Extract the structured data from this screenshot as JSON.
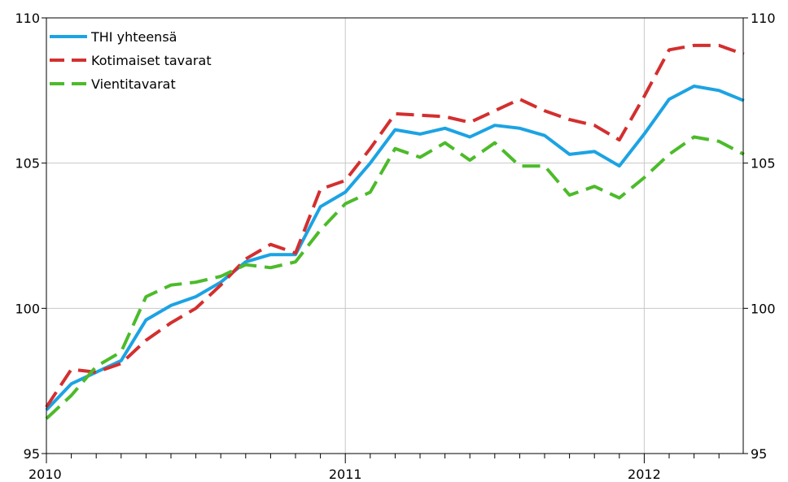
{
  "chart_data": {
    "type": "line",
    "title": "",
    "xlabel": "",
    "ylabel": "",
    "x_start": "2010-01",
    "x_tick_labels": [
      "2010",
      "2011",
      "2012"
    ],
    "x_ticks_months_per_label": 12,
    "ylim": [
      95,
      110
    ],
    "y_ticks": [
      95,
      100,
      105,
      110
    ],
    "y_tick_labels": [
      "95",
      "100",
      "105",
      "110"
    ],
    "grid": true,
    "right_axis_mirrors_left": true,
    "legend_position": "top-left",
    "series": [
      {
        "name": "THI yhteensä",
        "color": "#1ca3e3",
        "dash": "solid",
        "x": [
          "2010-01",
          "2010-02",
          "2010-03",
          "2010-04",
          "2010-05",
          "2010-06",
          "2010-07",
          "2010-08",
          "2010-09",
          "2010-10",
          "2010-11",
          "2010-12",
          "2011-01",
          "2011-02",
          "2011-03",
          "2011-04",
          "2011-05",
          "2011-06",
          "2011-07",
          "2011-08",
          "2011-09",
          "2011-10",
          "2011-11",
          "2011-12",
          "2012-01",
          "2012-02",
          "2012-03",
          "2012-04",
          "2012-05"
        ],
        "values": [
          96.5,
          97.4,
          97.8,
          98.2,
          99.6,
          100.1,
          100.4,
          100.9,
          101.6,
          101.85,
          101.85,
          103.5,
          104.0,
          105.0,
          106.15,
          106.0,
          106.2,
          105.9,
          106.3,
          106.2,
          105.95,
          105.3,
          105.4,
          104.9,
          106.0,
          107.2,
          107.65,
          107.5,
          107.15
        ]
      },
      {
        "name": "Kotimaiset tavarat",
        "color": "#d32f2f",
        "dash": "dashed",
        "x": [
          "2010-01",
          "2010-02",
          "2010-03",
          "2010-04",
          "2010-05",
          "2010-06",
          "2010-07",
          "2010-08",
          "2010-09",
          "2010-10",
          "2010-11",
          "2010-12",
          "2011-01",
          "2011-02",
          "2011-03",
          "2011-04",
          "2011-05",
          "2011-06",
          "2011-07",
          "2011-08",
          "2011-09",
          "2011-10",
          "2011-11",
          "2011-12",
          "2012-01",
          "2012-02",
          "2012-03",
          "2012-04",
          "2012-05"
        ],
        "values": [
          96.6,
          97.9,
          97.8,
          98.1,
          98.9,
          99.5,
          100.0,
          100.8,
          101.7,
          102.2,
          101.9,
          104.1,
          104.4,
          105.5,
          106.7,
          106.65,
          106.6,
          106.4,
          106.8,
          107.2,
          106.8,
          106.5,
          106.3,
          105.8,
          107.3,
          108.9,
          109.05,
          109.05,
          108.75
        ]
      },
      {
        "name": "Vientitavarat",
        "color": "#4cbb2a",
        "dash": "dashed",
        "x": [
          "2010-01",
          "2010-02",
          "2010-03",
          "2010-04",
          "2010-05",
          "2010-06",
          "2010-07",
          "2010-08",
          "2010-09",
          "2010-10",
          "2010-11",
          "2010-12",
          "2011-01",
          "2011-02",
          "2011-03",
          "2011-04",
          "2011-05",
          "2011-06",
          "2011-07",
          "2011-08",
          "2011-09",
          "2011-10",
          "2011-11",
          "2011-12",
          "2012-01",
          "2012-02",
          "2012-03",
          "2012-04",
          "2012-05"
        ],
        "values": [
          96.2,
          97.0,
          98.0,
          98.5,
          100.4,
          100.8,
          100.9,
          101.1,
          101.5,
          101.4,
          101.6,
          102.7,
          103.6,
          104.0,
          105.5,
          105.2,
          105.7,
          105.1,
          105.7,
          104.9,
          104.9,
          103.9,
          104.2,
          103.8,
          104.5,
          105.3,
          105.9,
          105.75,
          105.3
        ]
      }
    ]
  }
}
